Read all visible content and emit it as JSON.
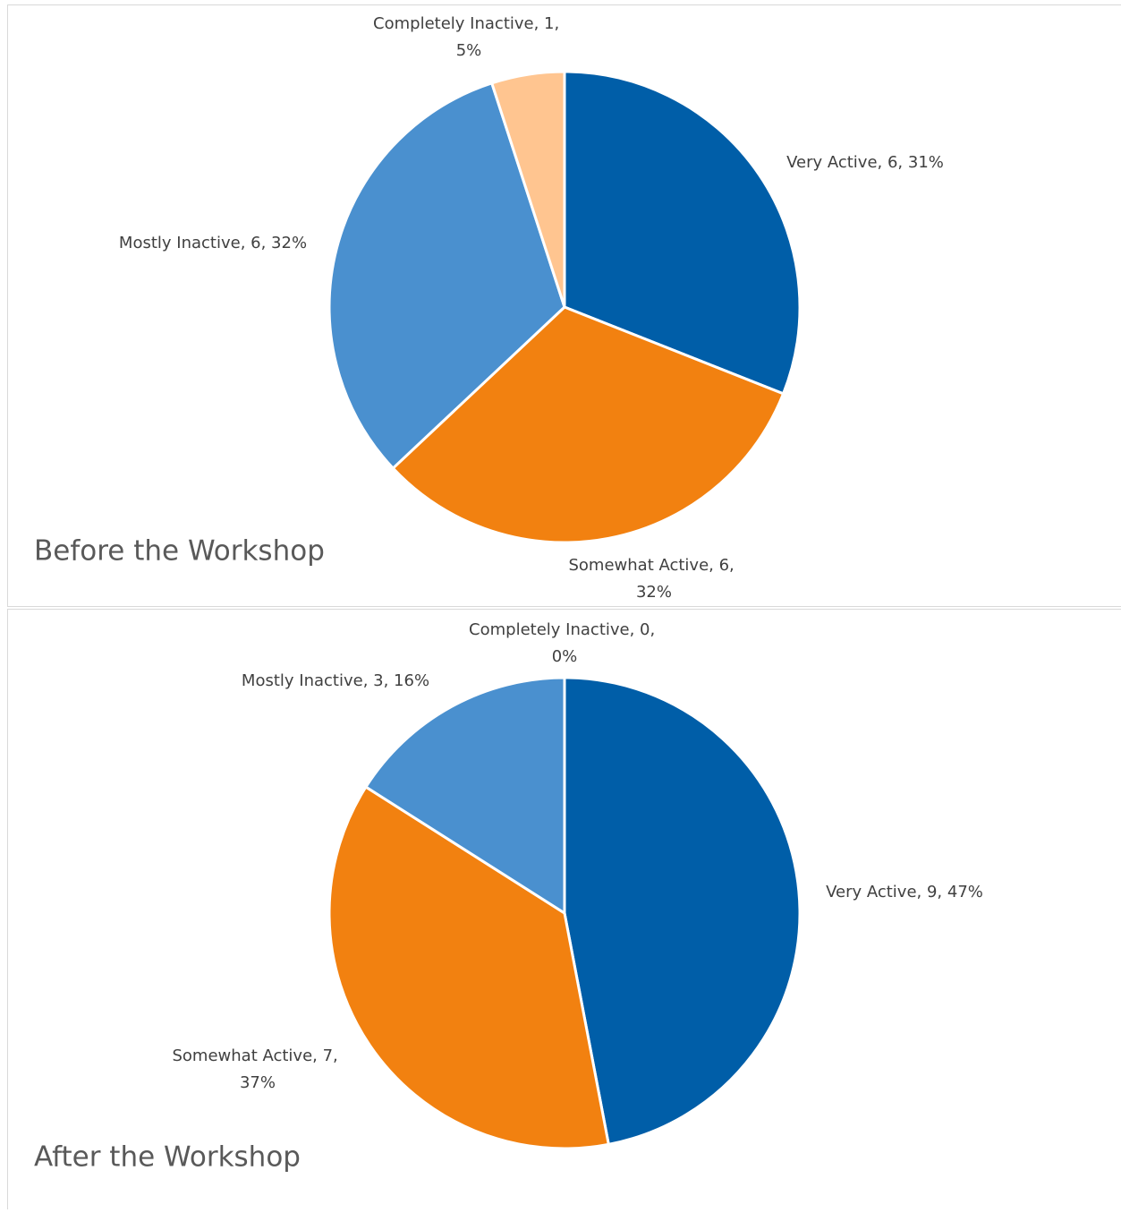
{
  "chart_data": [
    {
      "type": "pie",
      "title": "Before the Workshop",
      "categories": [
        "Very Active",
        "Somewhat Active",
        "Mostly Inactive",
        "Completely Inactive"
      ],
      "values": [
        31,
        32,
        32,
        5
      ],
      "value_labels": [
        "Very Active, 6, 31%",
        "Somewhat Active, 6, 32%",
        "Mostly Inactive, 6, 32%",
        "Completely Inactive, 1, 5%"
      ],
      "colors": [
        "#005ea8",
        "#f28110",
        "#4a90cf",
        "#ffc590"
      ]
    },
    {
      "type": "pie",
      "title": "After the Workshop",
      "categories": [
        "Very Active",
        "Somewhat Active",
        "Mostly Inactive",
        "Completely Inactive"
      ],
      "values": [
        47,
        37,
        16,
        0
      ],
      "value_labels": [
        "Very Active, 9, 47%",
        "Somewhat Active, 7, 37%",
        "Mostly Inactive, 3, 16%",
        "Completely Inactive, 0, 0%"
      ],
      "colors": [
        "#005ea8",
        "#f28110",
        "#4a90cf",
        "#ffc590"
      ]
    }
  ]
}
